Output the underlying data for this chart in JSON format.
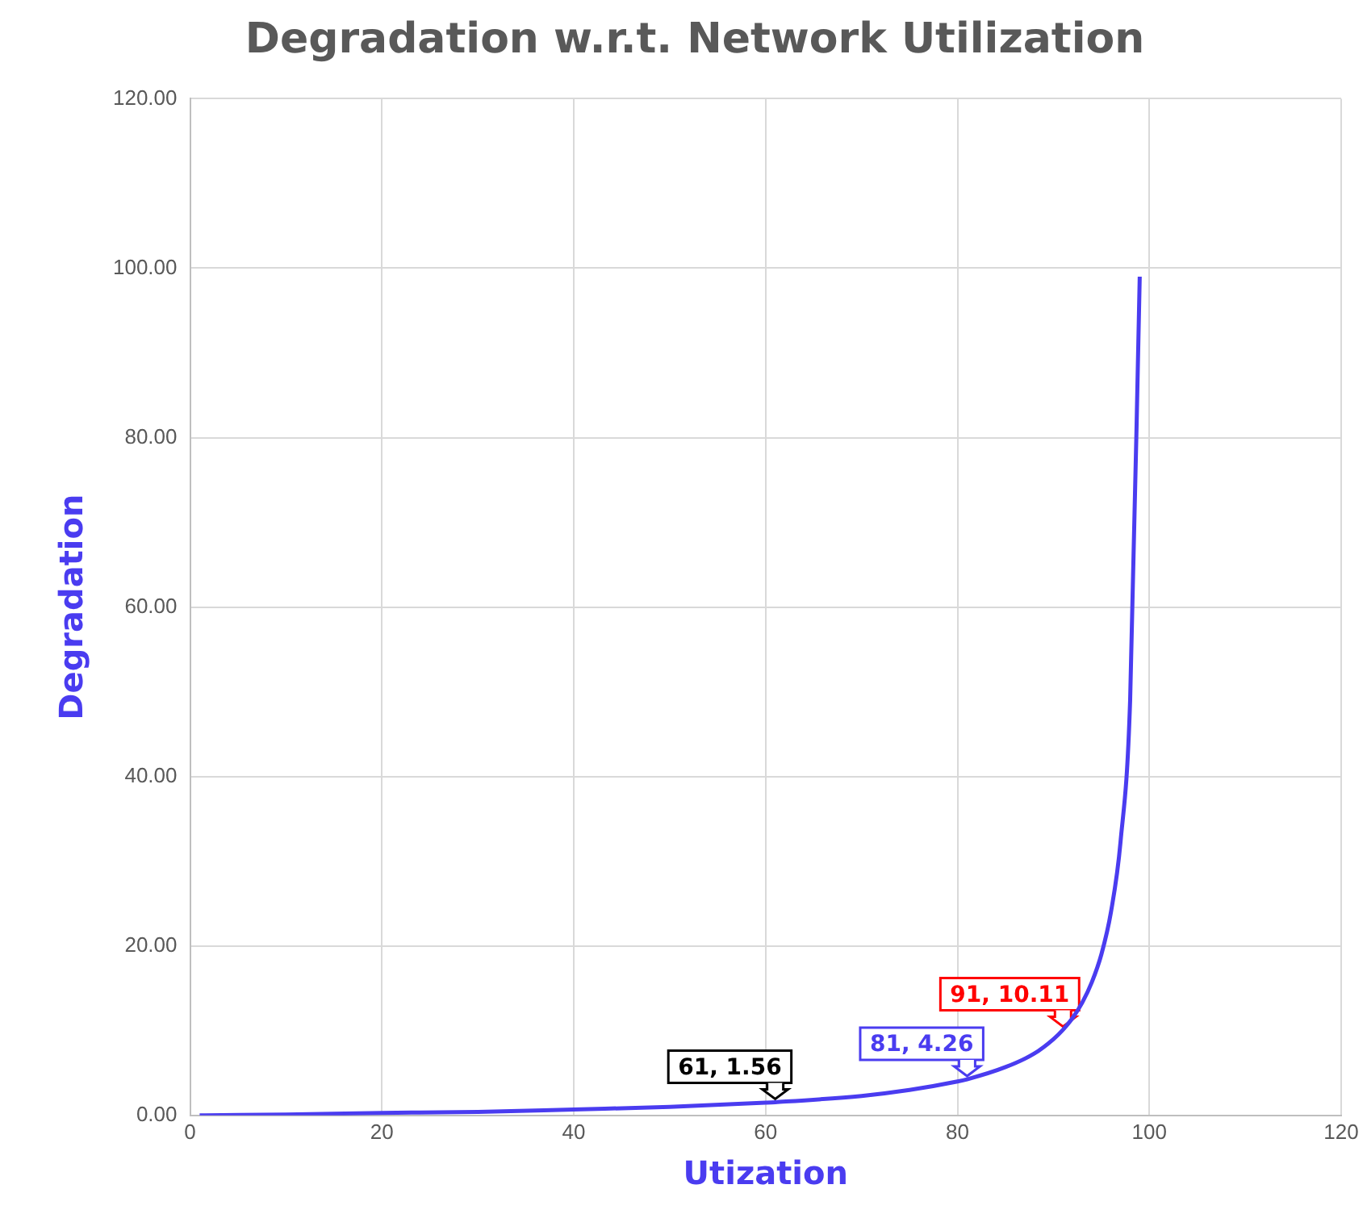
{
  "chart_data": {
    "type": "line",
    "title": "Degradation w.r.t. Network Utilization",
    "xlabel": "Utization",
    "ylabel": "Degradation",
    "x": [
      1,
      10,
      20,
      30,
      40,
      50,
      60,
      61,
      70,
      75,
      80,
      81,
      85,
      88,
      90,
      91,
      92,
      93,
      94,
      95,
      96,
      97,
      98,
      99
    ],
    "series": [
      {
        "color": "#4a3cf0",
        "values": [
          0.0,
          0.1,
          0.3,
          0.4,
          0.7,
          1.0,
          1.5,
          1.56,
          2.3,
          3.0,
          4.0,
          4.26,
          5.7,
          7.3,
          9.0,
          10.11,
          11.5,
          13.3,
          15.7,
          19.0,
          24.0,
          32.3,
          49.0,
          99.0
        ]
      }
    ],
    "xlim": [
      0,
      120
    ],
    "xticks": [
      0,
      20,
      40,
      60,
      80,
      100,
      120
    ],
    "ylim": [
      0,
      120
    ],
    "yticks": [
      {
        "value": 0,
        "label": "0.00"
      },
      {
        "value": 20,
        "label": "20.00"
      },
      {
        "value": 40,
        "label": "40.00"
      },
      {
        "value": 60,
        "label": "60.00"
      },
      {
        "value": 80,
        "label": "80.00"
      },
      {
        "value": 100,
        "label": "100.00"
      },
      {
        "value": 120,
        "label": "120.00"
      }
    ],
    "grid": true,
    "legend": false,
    "marker": "none",
    "line_style": "solid",
    "annotations": [
      {
        "text": "61, 1.56",
        "x": 61,
        "y": 1.56
      },
      {
        "text": "81, 4.26",
        "x": 81,
        "y": 4.26
      },
      {
        "text": "91, 10.11",
        "x": 91,
        "y": 10.11
      }
    ]
  }
}
